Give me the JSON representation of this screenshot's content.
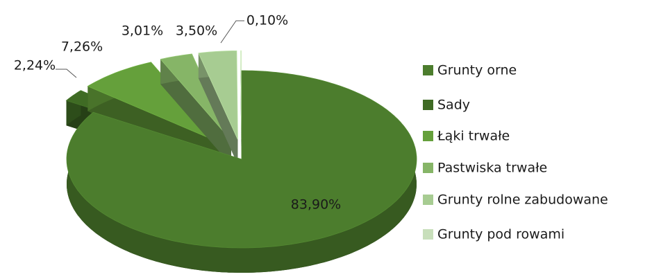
{
  "chart_data": {
    "type": "pie3d",
    "categories": [
      "Grunty orne",
      "Sady",
      "Łąki trwałe",
      "Pastwiska trwałe",
      "Grunty rolne zabudowane",
      "Grunty pod rowami"
    ],
    "values": [
      83.9,
      2.24,
      7.26,
      3.01,
      3.5,
      0.1
    ],
    "value_labels": [
      "83,90%",
      "2,24%",
      "7,26%",
      "3,01%",
      "3,50%",
      "0,10%"
    ],
    "colors": [
      "#4c7d2d",
      "#3f6b24",
      "#65a03b",
      "#86b567",
      "#a7cc92",
      "#c8dfbb"
    ],
    "legend": "right"
  }
}
